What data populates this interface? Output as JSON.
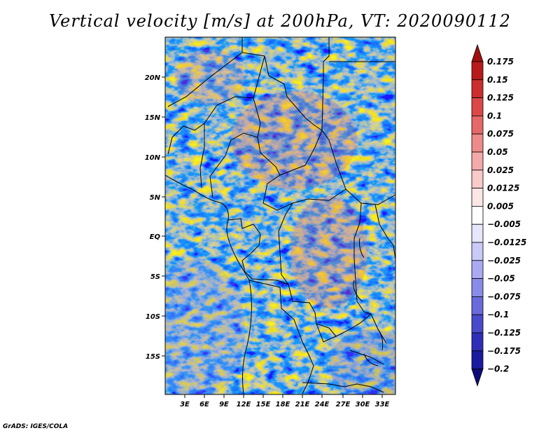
{
  "title": "Vertical velocity [m/s] at 200hPa, VT: 2020090112",
  "credit": "GrADS: IGES/COLA",
  "map": {
    "lat_labels": [
      "20N",
      "15N",
      "10N",
      "5N",
      "EQ",
      "5S",
      "10S",
      "15S"
    ],
    "lon_labels": [
      "3E",
      "6E",
      "9E",
      "12E",
      "15E",
      "18E",
      "21E",
      "24E",
      "27E",
      "30E",
      "33E"
    ]
  },
  "colorbar": {
    "labels": [
      "0.175",
      "0.15",
      "0.125",
      "0.1",
      "0.075",
      "0.05",
      "0.025",
      "0.0125",
      "0.005",
      "−0.005",
      "−0.0125",
      "−0.025",
      "−0.05",
      "−0.075",
      "−0.1",
      "−0.125",
      "−0.175",
      "−0.2"
    ],
    "colors": [
      "#a01010",
      "#b81a1a",
      "#cc2e2e",
      "#dc4848",
      "#e66868",
      "#ee8a8a",
      "#f4aaaa",
      "#f9caca",
      "#fde6e6",
      "#ffffff",
      "#e6e6fc",
      "#cacaf8",
      "#aaaaf2",
      "#8a8aea",
      "#6a6adc",
      "#4a4acc",
      "#2e2eb8",
      "#1a1aa0",
      "#0d0d7a"
    ]
  }
}
